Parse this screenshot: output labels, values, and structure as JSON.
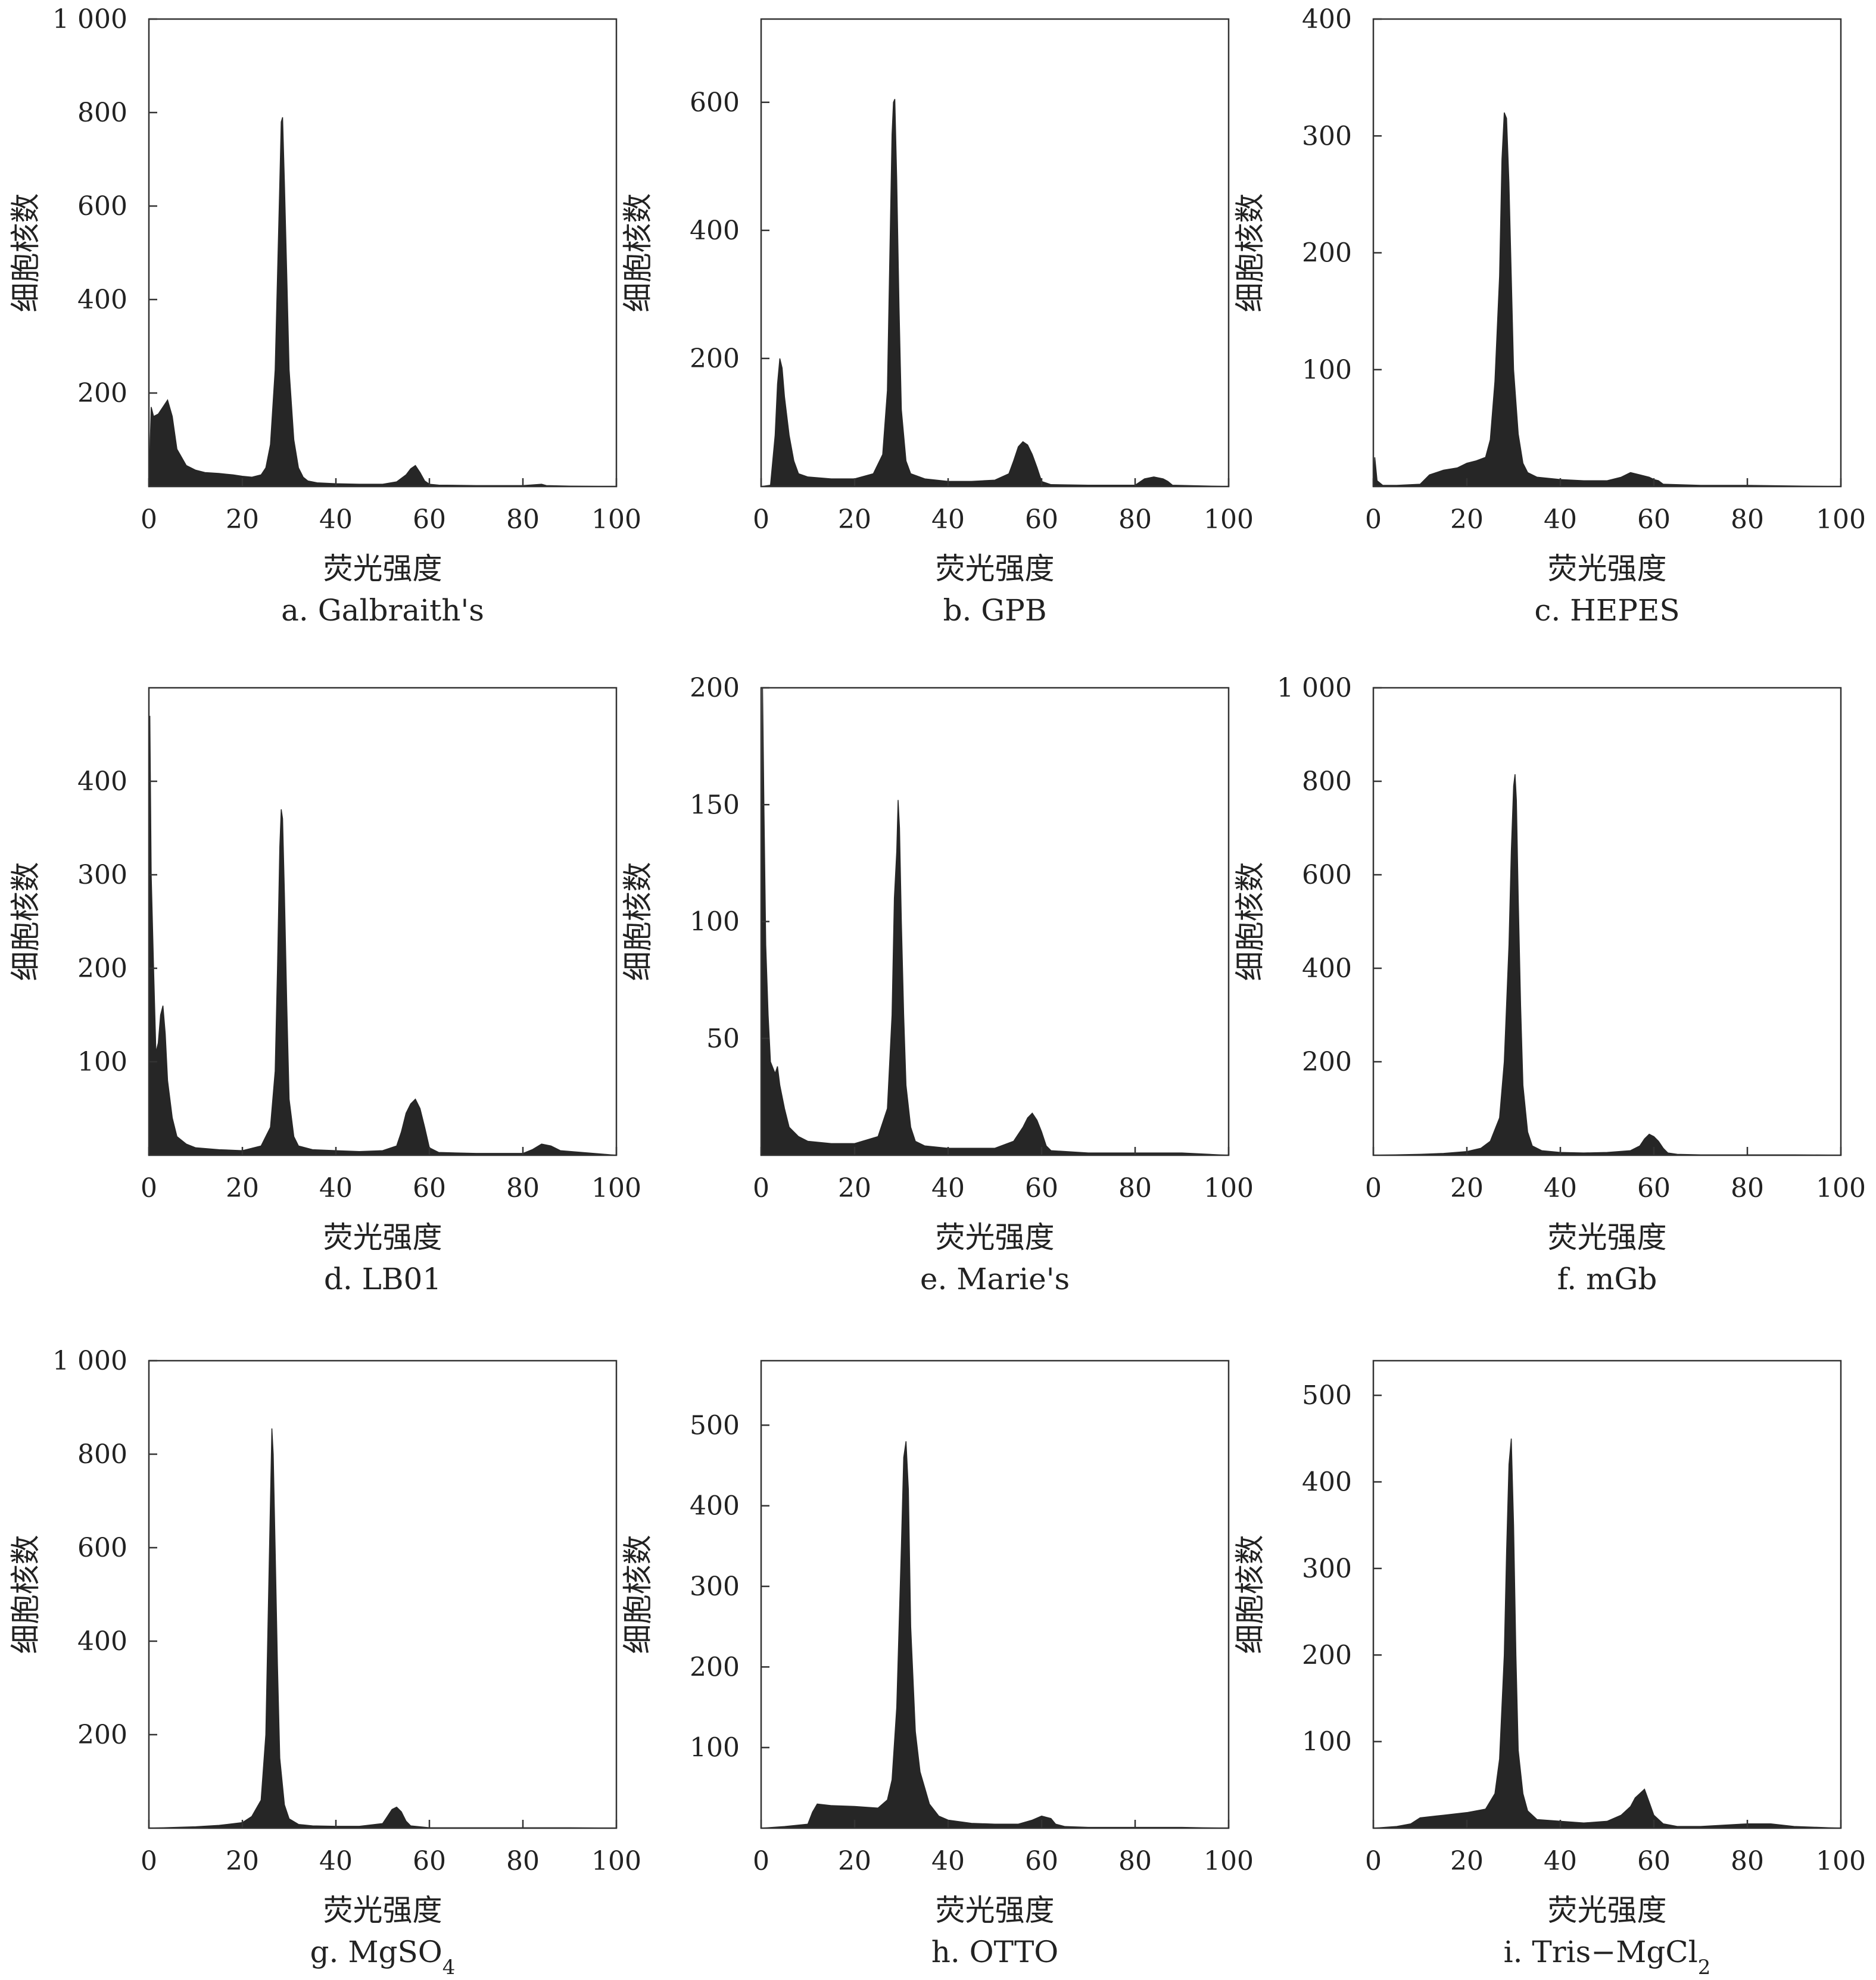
{
  "colors": {
    "ink": "#222222",
    "histogram": "#262626",
    "debris": "#5e5e5e",
    "frame": "#333333"
  },
  "chart_data": [
    {
      "type": "area",
      "caption": "a. Galbraith's",
      "caption_sub": "",
      "xlabel": "荧光强度",
      "ylabel": "细胞核数",
      "xlim": [
        0,
        100
      ],
      "ylim": [
        0,
        1000
      ],
      "xticks": [
        0,
        20,
        40,
        60,
        80,
        100
      ],
      "xtick_labels": [
        "0",
        "20",
        "40",
        "60",
        "80",
        "100"
      ],
      "yticks": [
        200,
        400,
        600,
        800,
        1000
      ],
      "ytick_labels": [
        "200",
        "400",
        "600",
        "800",
        "1 000"
      ],
      "series": [
        {
          "x": [
            0,
            0.5,
            1,
            2,
            3,
            4,
            5,
            6,
            8,
            10,
            12,
            15,
            18,
            20,
            22,
            24,
            25,
            26,
            27,
            27.5,
            28,
            28.3,
            28.6,
            29,
            29.5,
            30,
            31,
            32,
            33,
            34,
            36,
            40,
            45,
            50,
            53,
            55,
            56,
            57,
            58,
            59,
            60,
            62,
            70,
            80,
            84,
            85,
            90,
            100
          ],
          "y": [
            0,
            170,
            150,
            155,
            170,
            185,
            150,
            80,
            45,
            35,
            30,
            28,
            25,
            22,
            20,
            25,
            40,
            90,
            250,
            450,
            650,
            780,
            790,
            650,
            450,
            250,
            100,
            40,
            20,
            12,
            8,
            6,
            5,
            5,
            10,
            25,
            38,
            45,
            30,
            12,
            5,
            3,
            2,
            2,
            5,
            2,
            1,
            0
          ]
        }
      ]
    },
    {
      "type": "area",
      "caption": "b. GPB",
      "caption_sub": "",
      "xlabel": "荧光强度",
      "ylabel": "细胞核数",
      "xlim": [
        0,
        100
      ],
      "ylim": [
        0,
        730
      ],
      "xticks": [
        0,
        20,
        40,
        60,
        80,
        100
      ],
      "xtick_labels": [
        "0",
        "20",
        "40",
        "60",
        "80",
        "100"
      ],
      "yticks": [
        200,
        400,
        600
      ],
      "ytick_labels": [
        "200",
        "400",
        "600"
      ],
      "series": [
        {
          "x": [
            0,
            2,
            3,
            3.5,
            4,
            4.5,
            5,
            6,
            7,
            8,
            10,
            15,
            20,
            24,
            26,
            27,
            27.5,
            28,
            28.3,
            28.6,
            29,
            29.5,
            30,
            31,
            32,
            35,
            40,
            45,
            50,
            53,
            54,
            55,
            56,
            57,
            58,
            59,
            60,
            62,
            70,
            80,
            82,
            84,
            86,
            87,
            88,
            100
          ],
          "y": [
            0,
            2,
            80,
            160,
            200,
            185,
            140,
            80,
            40,
            20,
            15,
            12,
            12,
            20,
            50,
            150,
            350,
            550,
            600,
            605,
            480,
            280,
            120,
            40,
            20,
            12,
            8,
            8,
            10,
            20,
            40,
            62,
            70,
            65,
            50,
            30,
            8,
            3,
            2,
            2,
            12,
            15,
            12,
            8,
            2,
            0
          ]
        }
      ]
    },
    {
      "type": "area",
      "caption": "c. HEPES",
      "caption_sub": "",
      "xlabel": "荧光强度",
      "ylabel": "细胞核数",
      "xlim": [
        0,
        100
      ],
      "ylim": [
        0,
        400
      ],
      "xticks": [
        0,
        20,
        40,
        60,
        80,
        100
      ],
      "xtick_labels": [
        "0",
        "20",
        "40",
        "60",
        "80",
        "100"
      ],
      "yticks": [
        100,
        200,
        300,
        400
      ],
      "ytick_labels": [
        "100",
        "200",
        "300",
        "400"
      ],
      "series": [
        {
          "x": [
            0,
            0.3,
            0.8,
            2,
            5,
            10,
            12,
            15,
            18,
            20,
            22,
            24,
            25,
            26,
            27,
            27.5,
            28,
            28.5,
            29,
            29.5,
            30,
            31,
            32,
            33,
            35,
            40,
            45,
            50,
            53,
            55,
            57,
            59,
            60,
            61,
            62,
            70,
            80,
            100
          ],
          "y": [
            0,
            25,
            5,
            1,
            1,
            2,
            10,
            14,
            16,
            20,
            22,
            25,
            40,
            90,
            180,
            280,
            320,
            315,
            260,
            180,
            100,
            45,
            20,
            12,
            8,
            6,
            5,
            5,
            8,
            12,
            10,
            8,
            6,
            5,
            2,
            1,
            1,
            0
          ]
        }
      ]
    },
    {
      "type": "area",
      "caption": "d. LB01",
      "caption_sub": "",
      "xlabel": "荧光强度",
      "ylabel": "细胞核数",
      "xlim": [
        0,
        100
      ],
      "ylim": [
        0,
        500
      ],
      "xticks": [
        0,
        20,
        40,
        60,
        80,
        100
      ],
      "xtick_labels": [
        "0",
        "20",
        "40",
        "60",
        "80",
        "100"
      ],
      "yticks": [
        100,
        200,
        300,
        400
      ],
      "ytick_labels": [
        "100",
        "200",
        "300",
        "400"
      ],
      "series": [
        {
          "x": [
            0,
            0.2,
            0.5,
            1,
            1.5,
            2,
            2.5,
            3,
            3.5,
            4,
            5,
            6,
            8,
            10,
            15,
            20,
            24,
            26,
            27,
            27.5,
            28,
            28.3,
            28.6,
            29,
            29.5,
            30,
            31,
            32,
            35,
            40,
            45,
            50,
            53,
            54,
            55,
            56,
            57,
            58,
            59,
            60,
            62,
            70,
            80,
            82,
            84,
            86,
            88,
            100
          ],
          "y": [
            0,
            470,
            300,
            200,
            110,
            120,
            150,
            160,
            130,
            80,
            40,
            20,
            12,
            8,
            6,
            5,
            10,
            30,
            90,
            200,
            330,
            370,
            360,
            280,
            160,
            60,
            20,
            10,
            6,
            5,
            4,
            5,
            10,
            25,
            45,
            55,
            60,
            50,
            30,
            8,
            3,
            2,
            2,
            6,
            12,
            10,
            5,
            0
          ]
        }
      ]
    },
    {
      "type": "area",
      "caption": "e. Marie's",
      "caption_sub": "",
      "xlabel": "荧光强度",
      "ylabel": "细胞核数",
      "xlim": [
        0,
        100
      ],
      "ylim": [
        0,
        200
      ],
      "xticks": [
        0,
        20,
        40,
        60,
        80,
        100
      ],
      "xtick_labels": [
        "0",
        "20",
        "40",
        "60",
        "80",
        "100"
      ],
      "yticks": [
        50,
        100,
        150,
        200
      ],
      "ytick_labels": [
        "50",
        "100",
        "150",
        "200"
      ],
      "series": [
        {
          "x": [
            0,
            0.3,
            0.6,
            1,
            1.5,
            2,
            3,
            3.5,
            4,
            5,
            6,
            8,
            10,
            15,
            20,
            25,
            27,
            28,
            28.5,
            29,
            29.3,
            29.6,
            30,
            30.5,
            31,
            32,
            33,
            35,
            40,
            45,
            50,
            54,
            56,
            57,
            58,
            59,
            60,
            61,
            62,
            70,
            80,
            90,
            100
          ],
          "y": [
            0,
            200,
            150,
            90,
            60,
            40,
            35,
            38,
            30,
            20,
            12,
            8,
            6,
            5,
            5,
            8,
            20,
            60,
            110,
            130,
            152,
            140,
            100,
            60,
            30,
            12,
            6,
            4,
            3,
            3,
            3,
            6,
            12,
            16,
            18,
            15,
            10,
            4,
            2,
            1,
            1,
            1,
            0
          ]
        }
      ]
    },
    {
      "type": "area",
      "caption": "f. mGb",
      "caption_sub": "",
      "xlabel": "荧光强度",
      "ylabel": "细胞核数",
      "xlim": [
        0,
        100
      ],
      "ylim": [
        0,
        1000
      ],
      "xticks": [
        0,
        20,
        40,
        60,
        80,
        100
      ],
      "xtick_labels": [
        "0",
        "20",
        "40",
        "60",
        "80",
        "100"
      ],
      "yticks": [
        200,
        400,
        600,
        800,
        1000
      ],
      "ytick_labels": [
        "200",
        "400",
        "600",
        "800",
        "1 000"
      ],
      "series": [
        {
          "x": [
            0,
            10,
            15,
            20,
            23,
            25,
            27,
            28,
            29,
            29.5,
            30,
            30.3,
            30.6,
            31,
            31.5,
            32,
            33,
            34,
            36,
            40,
            45,
            50,
            55,
            57,
            58,
            59,
            60,
            61,
            62,
            63,
            65,
            70,
            80,
            90,
            100
          ],
          "y": [
            0,
            2,
            4,
            8,
            15,
            30,
            80,
            200,
            450,
            650,
            790,
            815,
            760,
            550,
            320,
            150,
            50,
            20,
            10,
            6,
            5,
            6,
            10,
            20,
            35,
            45,
            40,
            30,
            15,
            5,
            2,
            1,
            1,
            1,
            0
          ]
        }
      ]
    },
    {
      "type": "area",
      "caption": "g. MgSO",
      "caption_sub": "4",
      "xlabel": "荧光强度",
      "ylabel": "细胞核数",
      "xlim": [
        0,
        100
      ],
      "ylim": [
        0,
        1000
      ],
      "xticks": [
        0,
        20,
        40,
        60,
        80,
        100
      ],
      "xtick_labels": [
        "0",
        "20",
        "40",
        "60",
        "80",
        "100"
      ],
      "yticks": [
        200,
        400,
        600,
        800,
        1000
      ],
      "ytick_labels": [
        "200",
        "400",
        "600",
        "800",
        "1 000"
      ],
      "series": [
        {
          "x": [
            0,
            10,
            15,
            20,
            22,
            24,
            25,
            25.5,
            26,
            26.3,
            26.6,
            27,
            27.5,
            28,
            29,
            30,
            32,
            35,
            40,
            45,
            50,
            51,
            52,
            53,
            54,
            55,
            56,
            60,
            70,
            80,
            90,
            100
          ],
          "y": [
            0,
            3,
            6,
            12,
            25,
            60,
            200,
            450,
            700,
            855,
            800,
            600,
            350,
            150,
            50,
            20,
            8,
            5,
            4,
            4,
            10,
            25,
            40,
            45,
            35,
            15,
            5,
            1,
            1,
            1,
            1,
            0
          ]
        }
      ]
    },
    {
      "type": "area",
      "caption": "h. OTTO",
      "caption_sub": "",
      "xlabel": "荧光强度",
      "ylabel": "细胞核数",
      "xlim": [
        0,
        100
      ],
      "ylim": [
        0,
        580
      ],
      "xticks": [
        0,
        20,
        40,
        60,
        80,
        100
      ],
      "xtick_labels": [
        "0",
        "20",
        "40",
        "60",
        "80",
        "100"
      ],
      "yticks": [
        100,
        200,
        300,
        400,
        500
      ],
      "ytick_labels": [
        "100",
        "200",
        "300",
        "400",
        "500"
      ],
      "series": [
        {
          "x": [
            0,
            5,
            10,
            11,
            12,
            15,
            20,
            25,
            27,
            28,
            29,
            30,
            30.5,
            31,
            31.5,
            32,
            33,
            34,
            35,
            36,
            38,
            40,
            45,
            50,
            55,
            58,
            60,
            62,
            63,
            65,
            70,
            80,
            90,
            100
          ],
          "y": [
            0,
            2,
            5,
            20,
            30,
            28,
            27,
            25,
            35,
            60,
            150,
            350,
            460,
            480,
            420,
            250,
            120,
            70,
            50,
            30,
            15,
            10,
            6,
            5,
            5,
            10,
            15,
            12,
            5,
            2,
            1,
            1,
            1,
            0
          ]
        }
      ]
    },
    {
      "type": "area",
      "caption": "i. Tris−MgCl",
      "caption_sub": "2",
      "xlabel": "荧光强度",
      "ylabel": "细胞核数",
      "xlim": [
        0,
        100
      ],
      "ylim": [
        0,
        540
      ],
      "xticks": [
        0,
        20,
        40,
        60,
        80,
        100
      ],
      "xtick_labels": [
        "0",
        "20",
        "40",
        "60",
        "80",
        "100"
      ],
      "yticks": [
        100,
        200,
        300,
        400,
        500
      ],
      "ytick_labels": [
        "100",
        "200",
        "300",
        "400",
        "500"
      ],
      "series": [
        {
          "x": [
            0,
            5,
            8,
            10,
            15,
            20,
            24,
            26,
            27,
            28,
            28.5,
            29,
            29.5,
            30,
            30.5,
            31,
            32,
            33,
            35,
            40,
            45,
            50,
            53,
            55,
            56,
            57,
            58,
            59,
            60,
            62,
            65,
            70,
            80,
            85,
            90,
            100
          ],
          "y": [
            0,
            2,
            5,
            12,
            15,
            18,
            22,
            40,
            80,
            200,
            320,
            420,
            450,
            350,
            200,
            90,
            40,
            20,
            10,
            8,
            6,
            8,
            15,
            25,
            35,
            40,
            45,
            30,
            15,
            5,
            2,
            2,
            5,
            5,
            2,
            0
          ]
        }
      ]
    }
  ]
}
